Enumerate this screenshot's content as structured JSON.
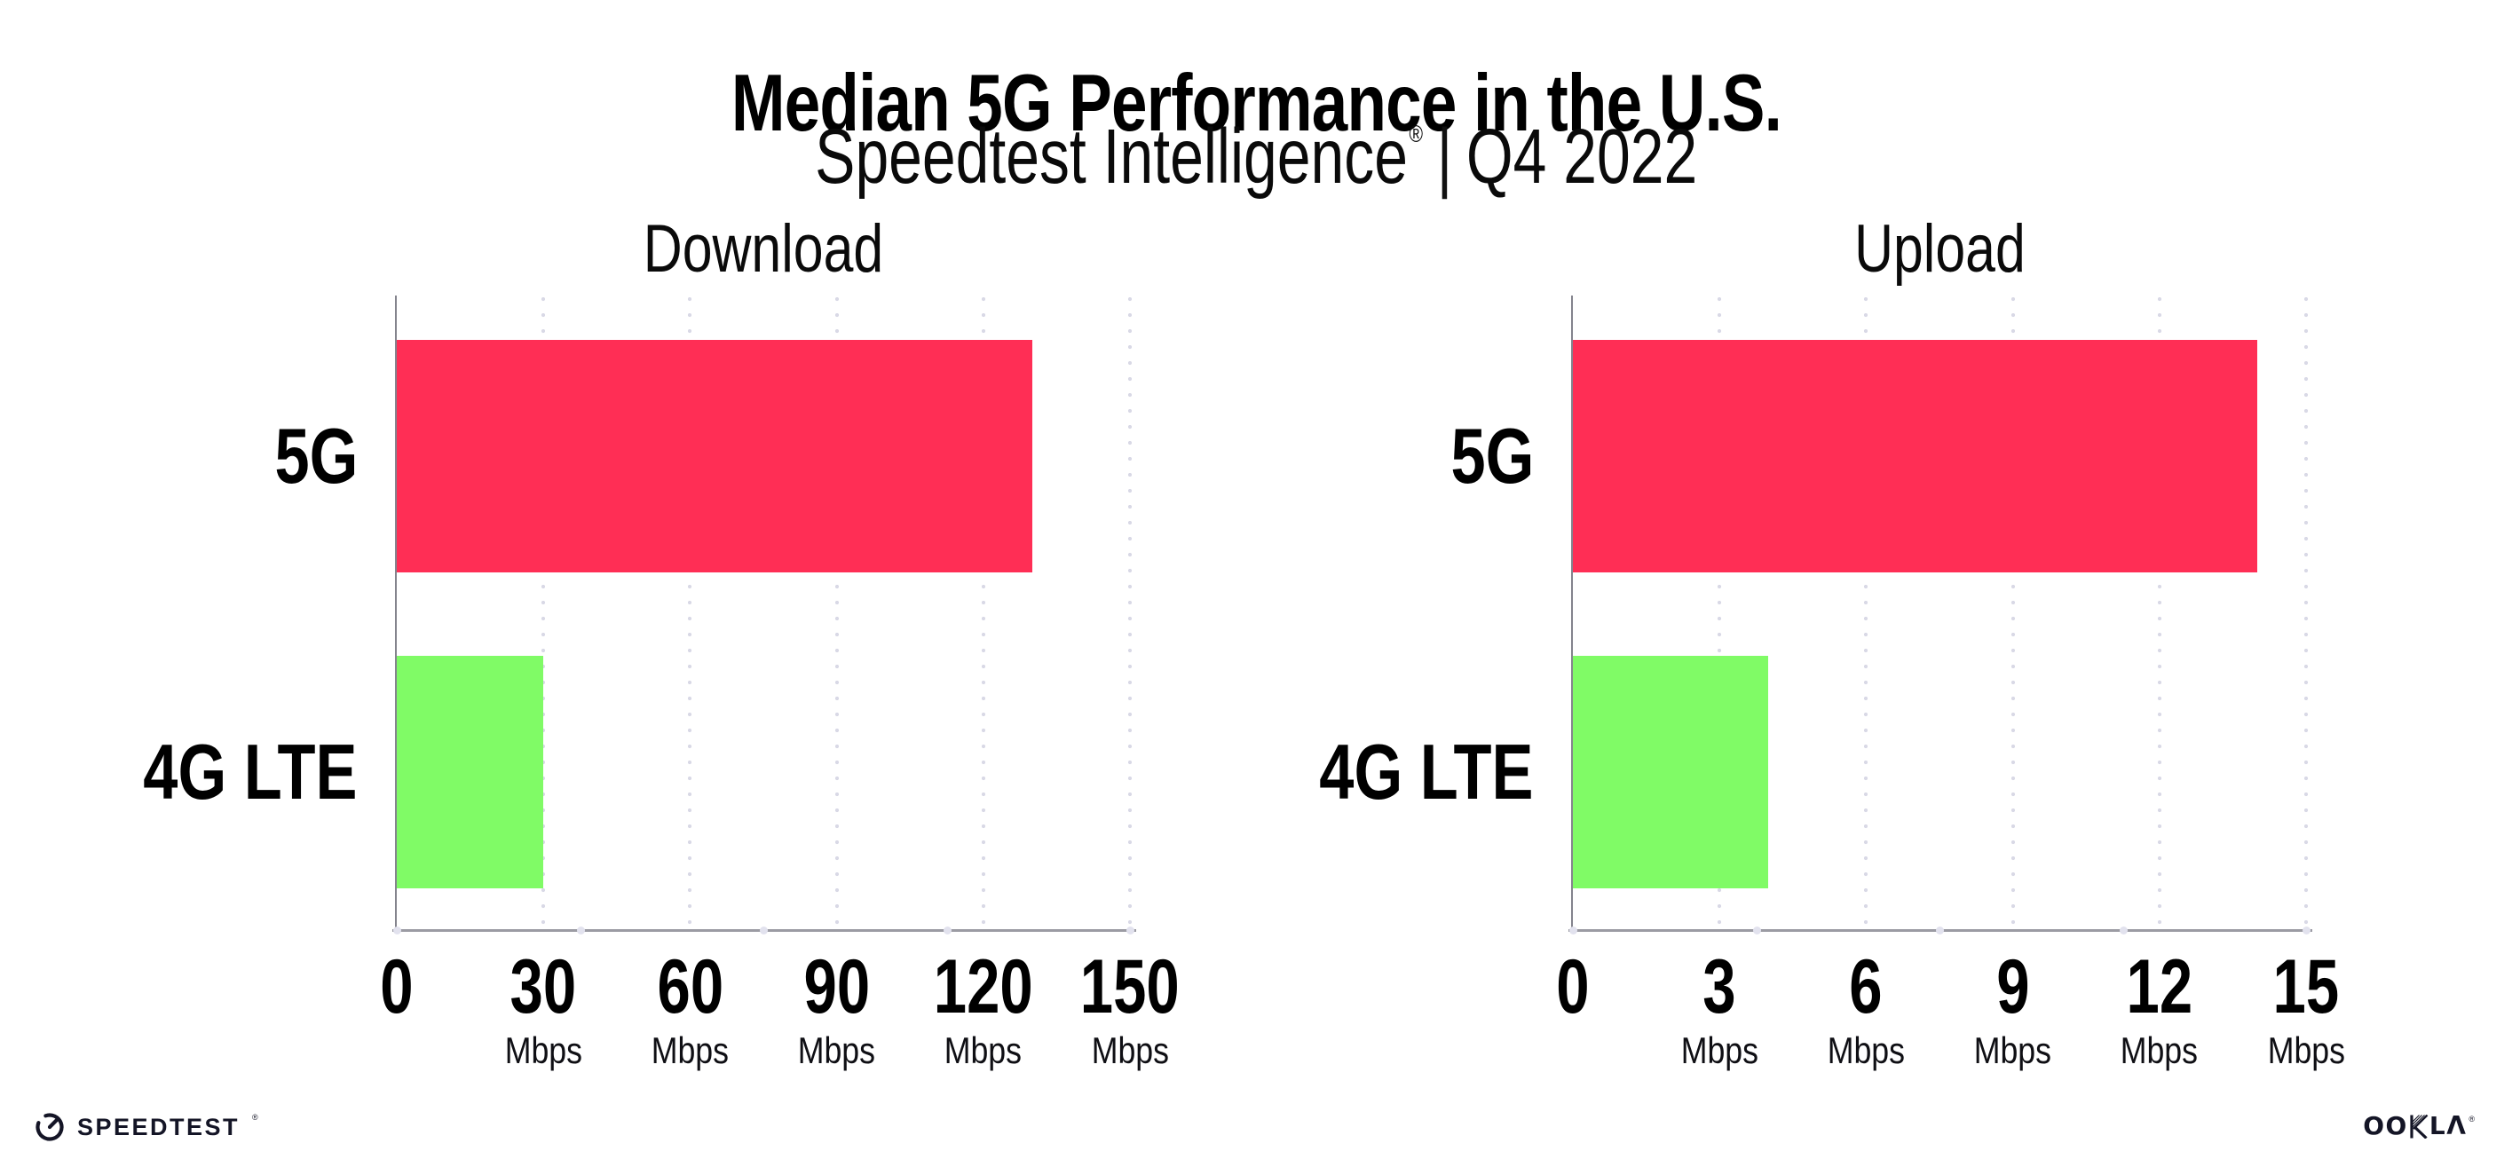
{
  "header": {
    "title": "Median 5G Performance in the U.S.",
    "subtitle_brand": "Speedtest Intelligence",
    "subtitle_reg": "®",
    "subtitle_separator": "|",
    "subtitle_period": "Q4 2022"
  },
  "chart_data": [
    {
      "type": "bar",
      "orientation": "horizontal",
      "title": "Download",
      "categories": [
        "5G",
        "4G LTE"
      ],
      "values": [
        130,
        30
      ],
      "unit": "Mbps",
      "xlim": [
        0,
        150
      ],
      "xticks": [
        0,
        30,
        60,
        90,
        120,
        150
      ],
      "xtick_unit": "Mbps",
      "bar_colors": [
        "#ff2e55",
        "#80fb66"
      ],
      "grid": "dotted vertical gridlines at each labeled tick",
      "legend": "none"
    },
    {
      "type": "bar",
      "orientation": "horizontal",
      "title": "Upload",
      "categories": [
        "5G",
        "4G LTE"
      ],
      "values": [
        14,
        4
      ],
      "unit": "Mbps",
      "xlim": [
        0,
        15
      ],
      "xticks": [
        0,
        3,
        6,
        9,
        12,
        15
      ],
      "xtick_unit": "Mbps",
      "bar_colors": [
        "#ff2e55",
        "#80fb66"
      ],
      "grid": "dotted vertical gridlines at each labeled tick",
      "legend": "none"
    }
  ],
  "colors": {
    "bar_5g": "#ff2e55",
    "bar_4g_lte": "#80fb66",
    "x_axis_line": "#9b9ba3",
    "y_axis_line": "#84848d",
    "gridline_dots": "#d9d9e6",
    "heading_text": "#000000",
    "footer_text": "#141526"
  },
  "icons": {
    "speedtest_logo": "circular-gauge-with-needle",
    "ookla_k": "multi-stroke-K-glyph"
  },
  "footer": {
    "speedtest_label": "SPEEDTEST",
    "speedtest_reg": "®",
    "ookla_oo": "OO",
    "ookla_k": "K",
    "ookla_l": "L",
    "ookla_a": "Λ",
    "ookla_reg": "®"
  }
}
